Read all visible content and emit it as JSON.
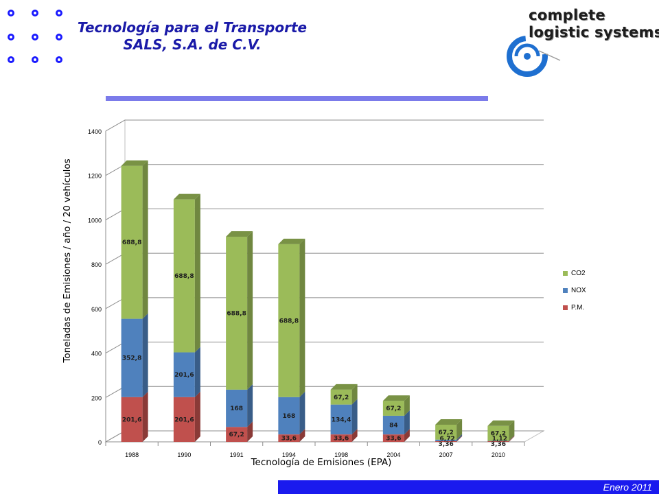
{
  "header": {
    "title_line1": "Tecnología para el Transporte",
    "title_line2": "SALS, S.A. de C.V."
  },
  "logo": {
    "line1": "complete",
    "line2": "logistic systems"
  },
  "footer": {
    "date": "Enero 2011"
  },
  "colors": {
    "accent_blue": "#1a1aee",
    "title_blue": "#1a1aa8",
    "rule_purple": "#7b7bea",
    "co2": "#9bbb59",
    "nox": "#4f81bd",
    "pm": "#c0504d"
  },
  "chart_data": {
    "type": "bar",
    "stacked": true,
    "style": "3d",
    "categories": [
      "1988",
      "1990",
      "1991",
      "1994",
      "1998",
      "2004",
      "2007",
      "2010"
    ],
    "series": [
      {
        "name": "P.M.",
        "color": "#c0504d",
        "values": [
          201.6,
          201.6,
          67.2,
          33.6,
          33.6,
          33.6,
          3.36,
          3.36
        ],
        "labels": [
          "201,6",
          "201,6",
          "67,2",
          "33,6",
          "33,6",
          "33,6",
          "3,36",
          "3,36"
        ]
      },
      {
        "name": "NOX",
        "color": "#4f81bd",
        "values": [
          352.8,
          201.6,
          168,
          168,
          134.4,
          84,
          6.72,
          1.12
        ],
        "labels": [
          "352,8",
          "201,6",
          "168",
          "168",
          "134,4",
          "84",
          "6,72",
          "1,12"
        ]
      },
      {
        "name": "CO2",
        "color": "#9bbb59",
        "values": [
          688.8,
          688.8,
          688.8,
          688.8,
          67.2,
          67.2,
          67.2,
          67.2
        ],
        "labels": [
          "688,8",
          "688,8",
          "688,8",
          "688,8",
          "67,2",
          "67,2",
          "67,2",
          "67,2"
        ]
      }
    ],
    "legend_order": [
      "CO2",
      "NOX",
      "P.M."
    ],
    "ylabel": "Toneladas de Emisiones / año / 20 vehículos",
    "xlabel": "Tecnología de Emisiones (EPA)",
    "ylim": [
      0,
      1400
    ],
    "yticks": [
      0,
      200,
      400,
      600,
      800,
      1000,
      1200,
      1400
    ],
    "grid": true,
    "legend_position": "right"
  }
}
